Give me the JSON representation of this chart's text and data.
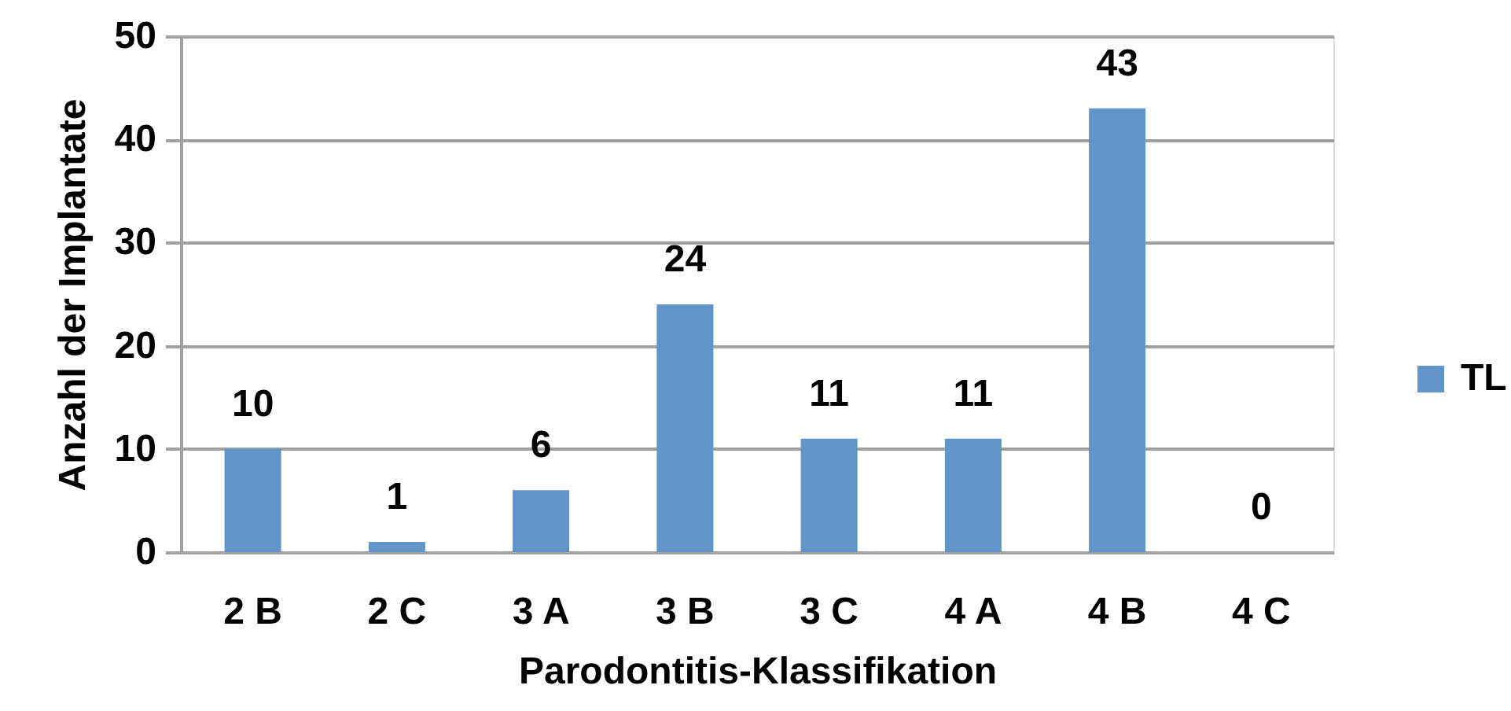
{
  "chart_data": {
    "type": "bar",
    "xlabel": "Parodontitis-Klassifikation",
    "ylabel": "Anzahl der Implantate",
    "categories": [
      "2 B",
      "2 C",
      "3 A",
      "3 B",
      "3 C",
      "4 A",
      "4 B",
      "4 C"
    ],
    "series": [
      {
        "name": "TL",
        "color": "#6195c9",
        "values": [
          10,
          1,
          6,
          24,
          11,
          11,
          43,
          0
        ]
      }
    ],
    "ylim": [
      0,
      50
    ],
    "yticks": [
      0,
      10,
      20,
      30,
      40,
      50
    ],
    "grid": "y",
    "legend": "right",
    "data_labels": true
  }
}
